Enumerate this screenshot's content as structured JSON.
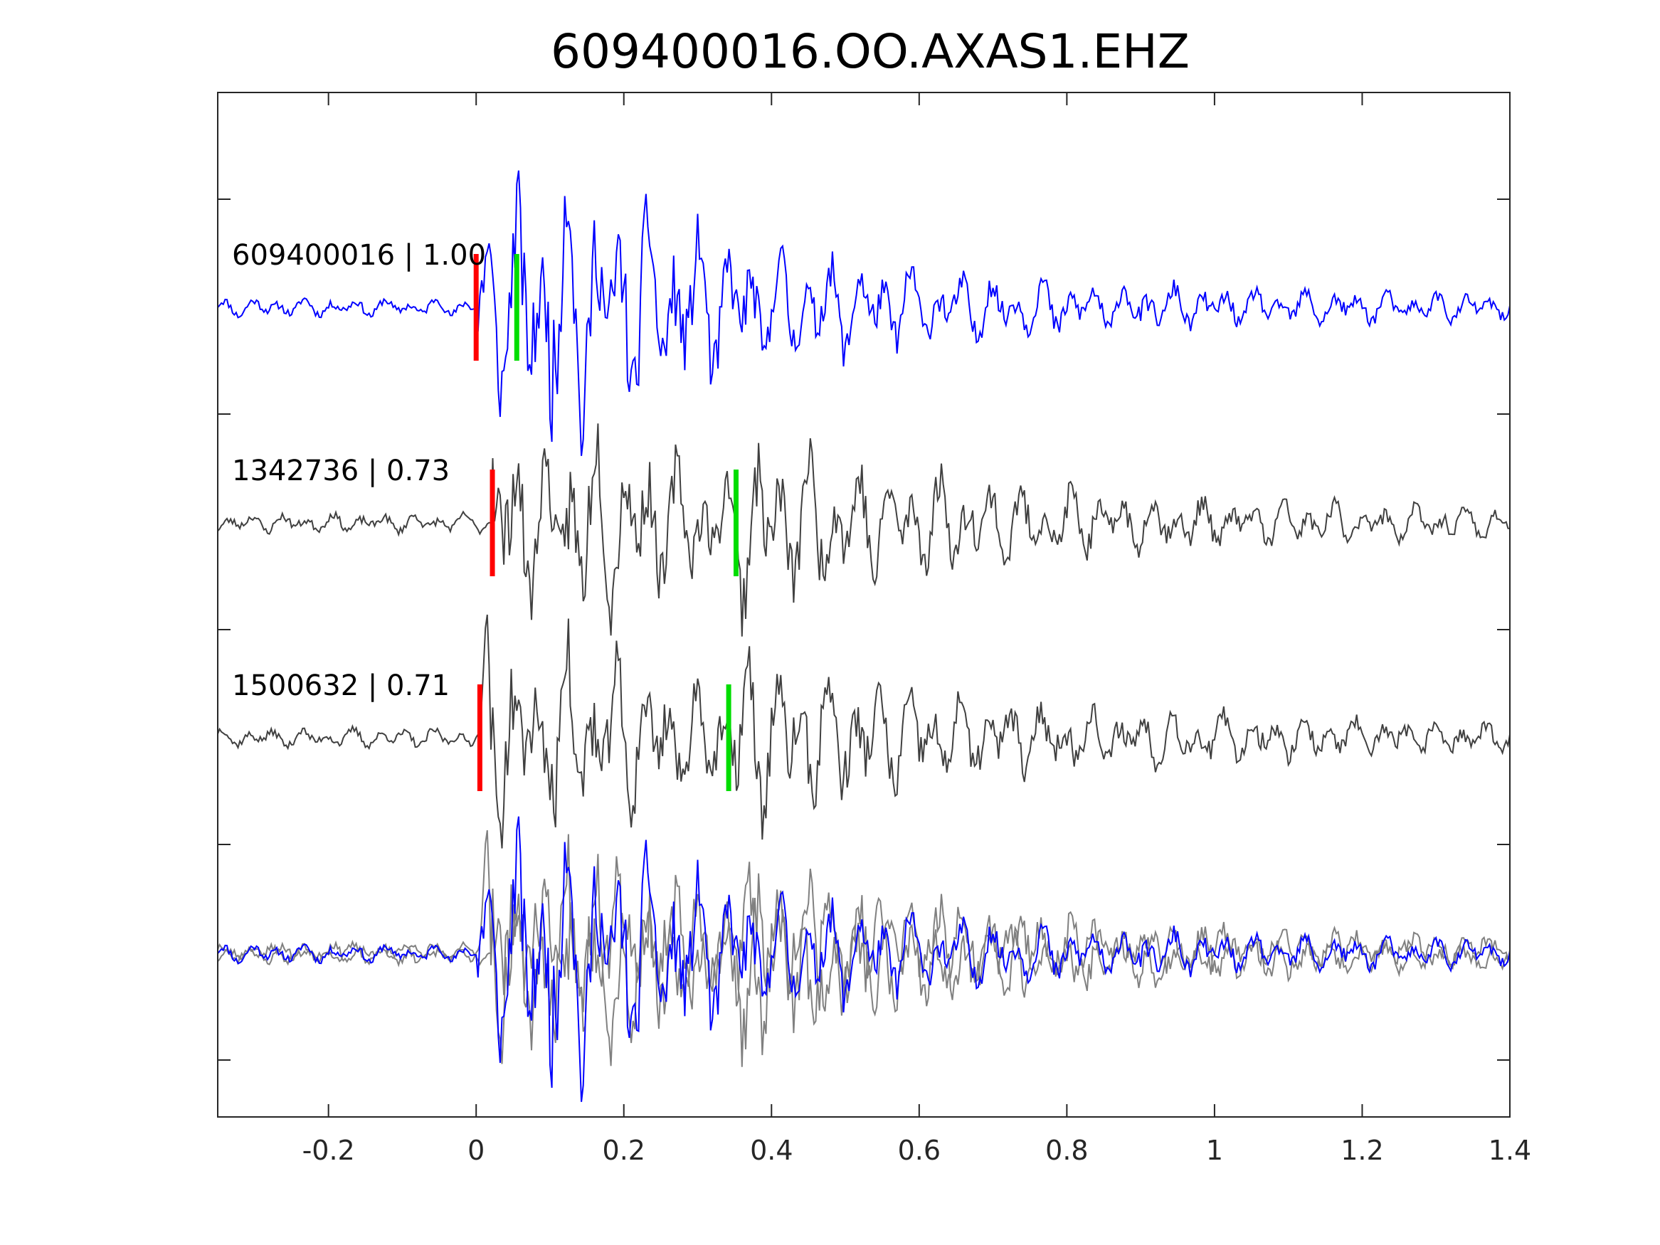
{
  "chart_data": {
    "type": "line",
    "title": "609400016.OO.AXAS1.EHZ",
    "xlabel": "",
    "ylabel": "",
    "xlim": [
      -0.35,
      1.4
    ],
    "xticks": [
      -0.2,
      0,
      0.2,
      0.4,
      0.6,
      0.8,
      1,
      1.2,
      1.4
    ],
    "xtick_labels": [
      "-0.2",
      "0",
      "0.2",
      "0.4",
      "0.6",
      "0.8",
      "1",
      "1.2",
      "1.4"
    ],
    "grid": false,
    "colors": {
      "primary": "#0000ff",
      "secondary": "#404040",
      "overlay_secondary": "#808080",
      "p_pick": "#ff0000",
      "s_pick": "#00dd00"
    },
    "traces": [
      {
        "label": "609400016 | 1.00",
        "id": "609400016",
        "cc": 1.0,
        "color": "#0000ff",
        "p_pick": 0.0,
        "s_pick": 0.055,
        "seed": 11
      },
      {
        "label": "1342736 | 0.73",
        "id": "1342736",
        "cc": 0.73,
        "color": "#404040",
        "p_pick": 0.022,
        "s_pick": 0.352,
        "seed": 23
      },
      {
        "label": "1500632 | 0.71",
        "id": "1500632",
        "cc": 0.71,
        "color": "#404040",
        "p_pick": 0.005,
        "s_pick": 0.342,
        "seed": 37
      }
    ],
    "overlay": {
      "description": "stacked overlay of all traces",
      "traces": [
        "609400016",
        "1342736",
        "1500632"
      ]
    }
  }
}
